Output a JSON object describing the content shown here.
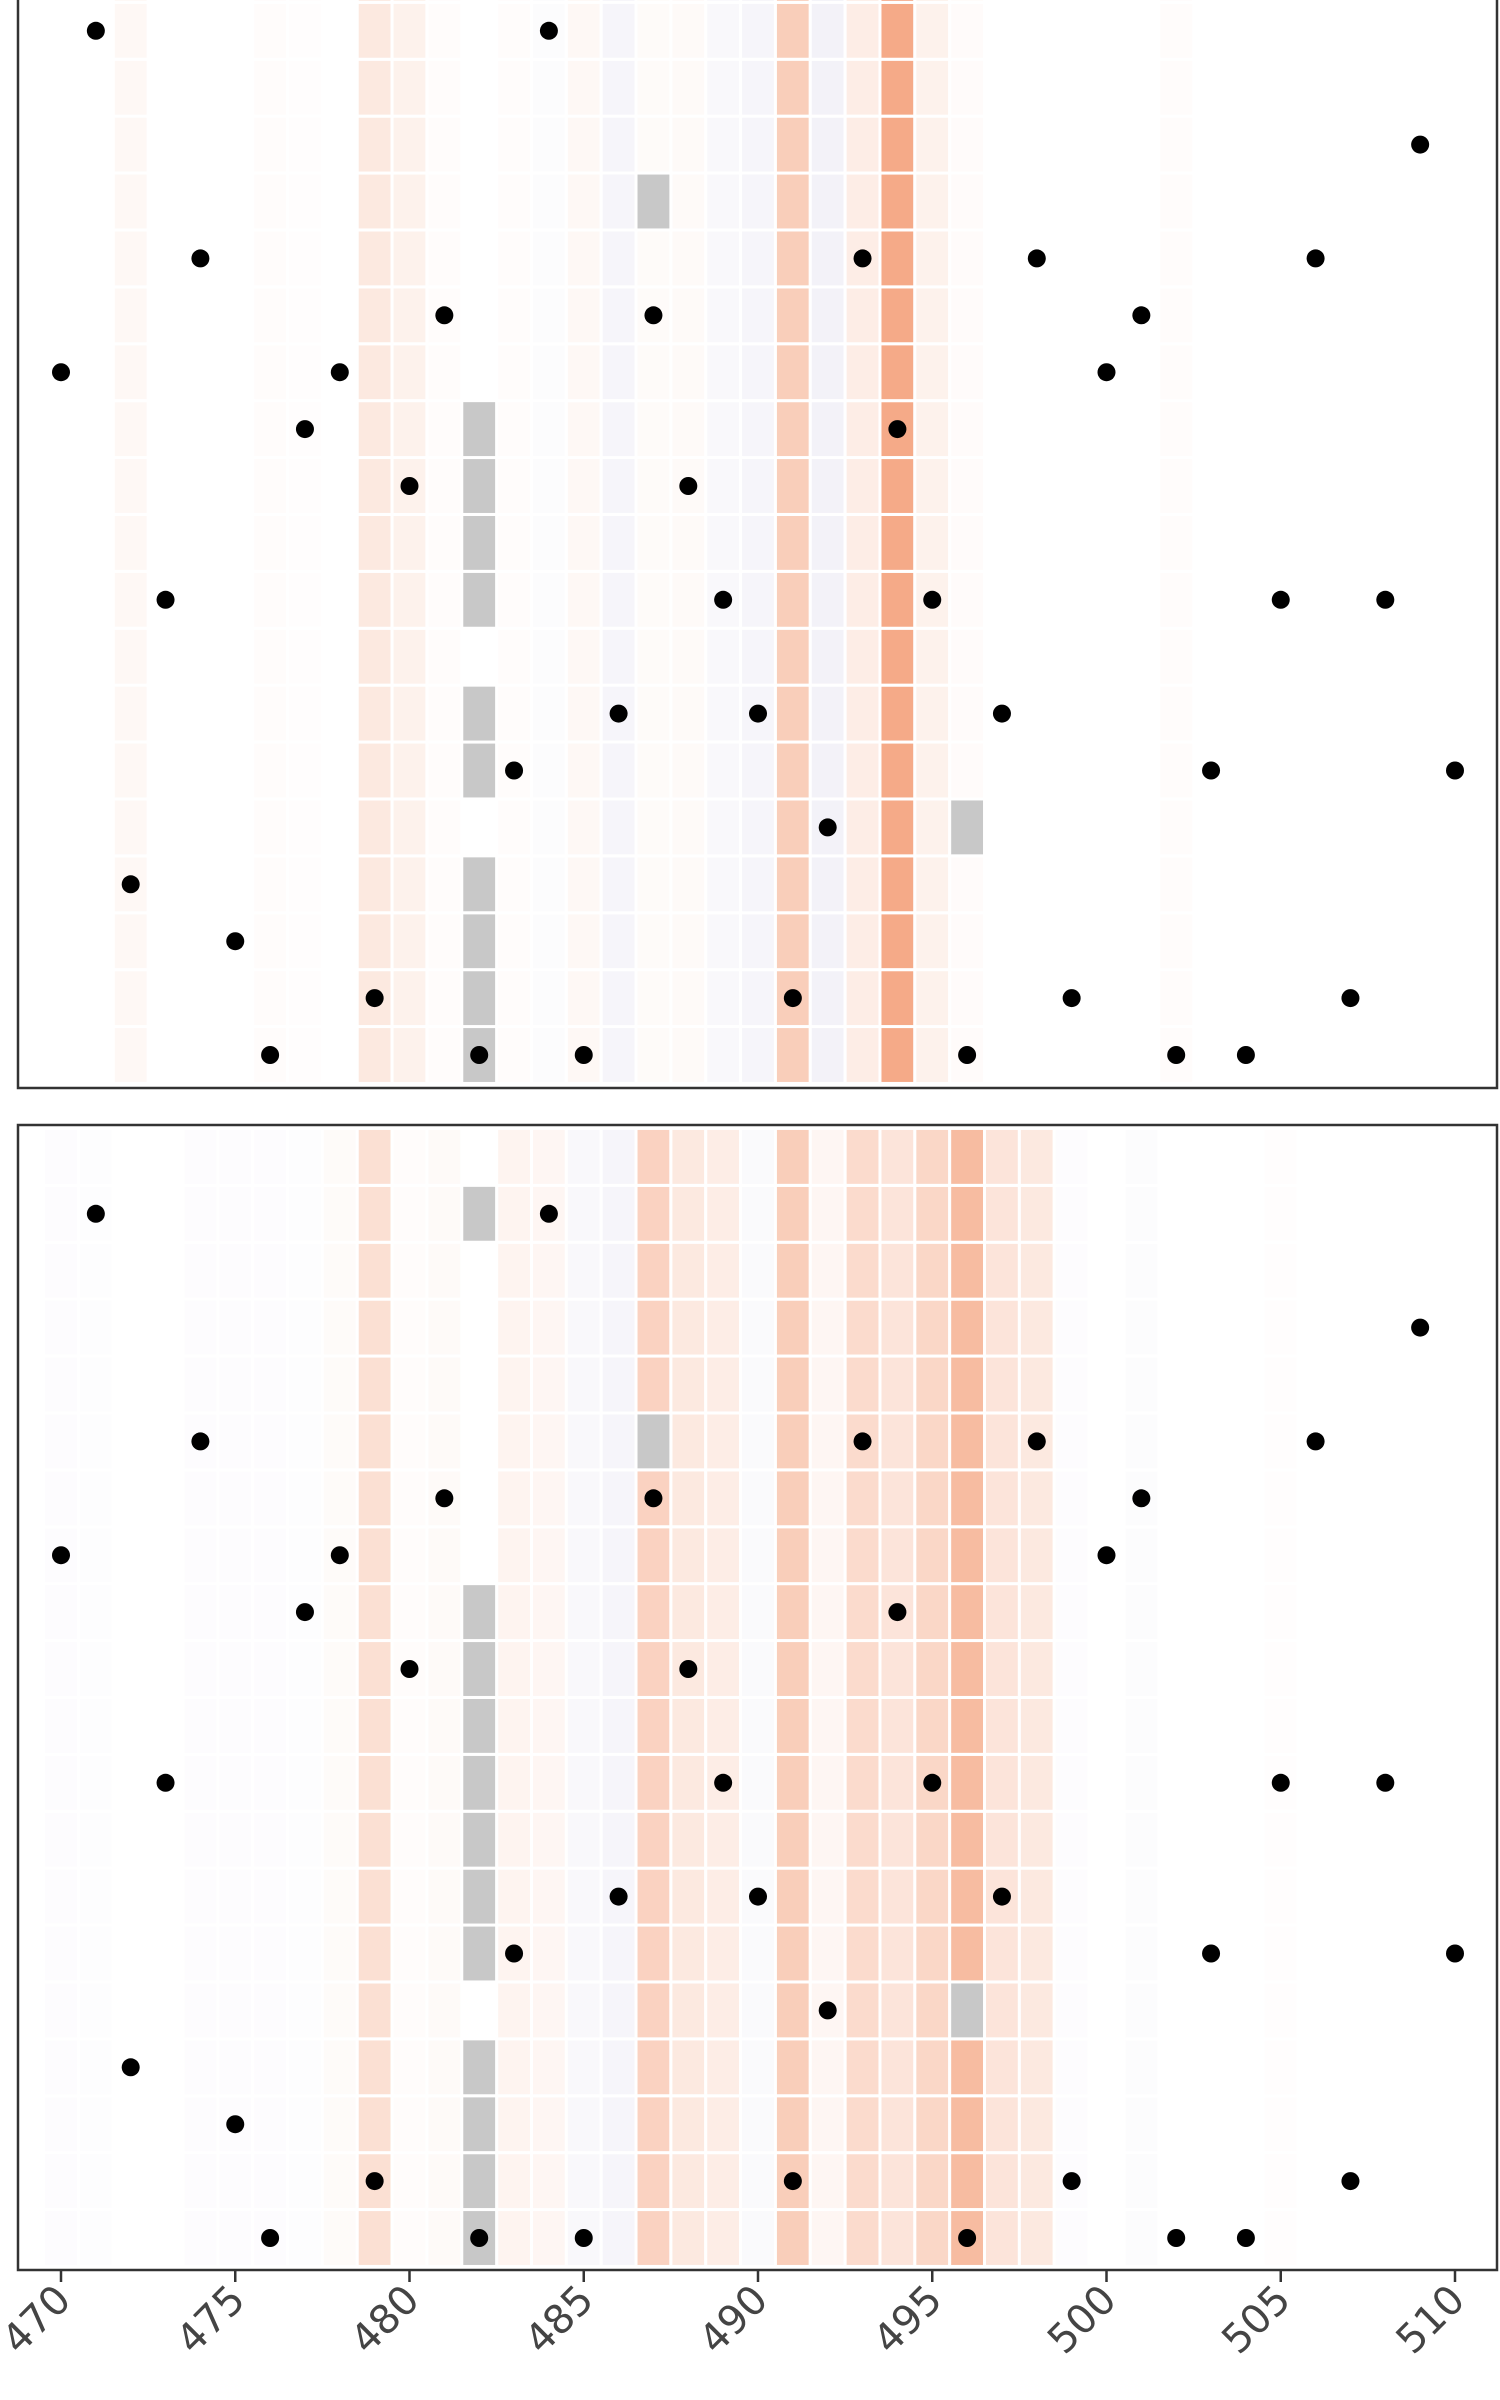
{
  "chart_data": {
    "type": "heatmap",
    "x_range": [
      469,
      511
    ],
    "x_tick_values": [
      470,
      475,
      480,
      485,
      490,
      495,
      500,
      505,
      510
    ],
    "x_tick_labels": [
      "470",
      "475",
      "480",
      "485",
      "490",
      "495",
      "500",
      "505",
      "510"
    ],
    "n_rows": 19,
    "grid": false,
    "colors": {
      "positive": "#f4a582",
      "negative": "#b2abd2",
      "missing": "#c8c8c8",
      "dot": "#000000",
      "frame": "#333333",
      "tick_text": "#444444"
    },
    "dots": [
      {
        "row": 0,
        "x": [
          476,
          482,
          485,
          496,
          502,
          504
        ]
      },
      {
        "row": 1,
        "x": [
          479,
          491,
          499,
          507
        ]
      },
      {
        "row": 2,
        "x": [
          475
        ]
      },
      {
        "row": 3,
        "x": [
          472
        ]
      },
      {
        "row": 4,
        "x": [
          492
        ]
      },
      {
        "row": 5,
        "x": [
          483,
          503,
          510
        ]
      },
      {
        "row": 6,
        "x": [
          486,
          490,
          497
        ]
      },
      {
        "row": 8,
        "x": [
          473,
          489,
          495,
          505,
          508
        ]
      },
      {
        "row": 10,
        "x": [
          480,
          488
        ]
      },
      {
        "row": 11,
        "x": [
          477,
          494
        ]
      },
      {
        "row": 12,
        "x": [
          470,
          478,
          500
        ]
      },
      {
        "row": 13,
        "x": [
          481,
          487,
          501
        ]
      },
      {
        "row": 14,
        "x": [
          474,
          493,
          498,
          506
        ]
      },
      {
        "row": 16,
        "x": [
          509
        ]
      },
      {
        "row": 18,
        "x": [
          471,
          484
        ]
      }
    ],
    "panels": [
      {
        "name": "top",
        "column_values": [
          {
            "x": 472,
            "v": 0.08
          },
          {
            "x": 476,
            "v": 0.03
          },
          {
            "x": 477,
            "v": 0.02
          },
          {
            "x": 479,
            "v": 0.25
          },
          {
            "x": 480,
            "v": 0.15
          },
          {
            "x": 481,
            "v": 0.03
          },
          {
            "x": 483,
            "v": 0.03
          },
          {
            "x": 484,
            "v": -0.04
          },
          {
            "x": 485,
            "v": 0.08
          },
          {
            "x": 486,
            "v": -0.12
          },
          {
            "x": 487,
            "v": 0.05
          },
          {
            "x": 488,
            "v": 0.06
          },
          {
            "x": 489,
            "v": -0.08
          },
          {
            "x": 490,
            "v": -0.12
          },
          {
            "x": 491,
            "v": 0.55
          },
          {
            "x": 492,
            "v": -0.15
          },
          {
            "x": 493,
            "v": 0.2
          },
          {
            "x": 494,
            "v": 0.95
          },
          {
            "x": 495,
            "v": 0.15
          },
          {
            "x": 496,
            "v": 0.04
          },
          {
            "x": 502,
            "v": 0.03
          }
        ],
        "missing": [
          {
            "x": 482,
            "rows": [
              0,
              1,
              2,
              3,
              5,
              6,
              8,
              9,
              10,
              11
            ]
          },
          {
            "x": 487,
            "rows": [
              15
            ]
          },
          {
            "x": 496,
            "rows": [
              4
            ]
          }
        ]
      },
      {
        "name": "bottom",
        "column_values": [
          {
            "x": 470,
            "v": -0.03
          },
          {
            "x": 471,
            "v": -0.02
          },
          {
            "x": 474,
            "v": -0.03
          },
          {
            "x": 475,
            "v": -0.03
          },
          {
            "x": 476,
            "v": -0.03
          },
          {
            "x": 477,
            "v": -0.02
          },
          {
            "x": 478,
            "v": 0.05
          },
          {
            "x": 479,
            "v": 0.35
          },
          {
            "x": 480,
            "v": 0.03
          },
          {
            "x": 481,
            "v": 0.06
          },
          {
            "x": 483,
            "v": 0.12
          },
          {
            "x": 484,
            "v": 0.1
          },
          {
            "x": 485,
            "v": -0.08
          },
          {
            "x": 486,
            "v": -0.12
          },
          {
            "x": 487,
            "v": 0.5
          },
          {
            "x": 488,
            "v": 0.25
          },
          {
            "x": 489,
            "v": 0.2
          },
          {
            "x": 490,
            "v": -0.06
          },
          {
            "x": 491,
            "v": 0.55
          },
          {
            "x": 492,
            "v": 0.1
          },
          {
            "x": 493,
            "v": 0.4
          },
          {
            "x": 494,
            "v": 0.3
          },
          {
            "x": 495,
            "v": 0.45
          },
          {
            "x": 496,
            "v": 0.75
          },
          {
            "x": 497,
            "v": 0.3
          },
          {
            "x": 498,
            "v": 0.25
          },
          {
            "x": 499,
            "v": -0.03
          },
          {
            "x": 501,
            "v": -0.04
          },
          {
            "x": 505,
            "v": 0.02
          }
        ],
        "missing": [
          {
            "x": 482,
            "rows": [
              0,
              1,
              2,
              3,
              5,
              6,
              7,
              8,
              9,
              10,
              11,
              18
            ]
          },
          {
            "x": 487,
            "rows": [
              14
            ]
          },
          {
            "x": 496,
            "rows": [
              4
            ]
          }
        ]
      }
    ]
  }
}
